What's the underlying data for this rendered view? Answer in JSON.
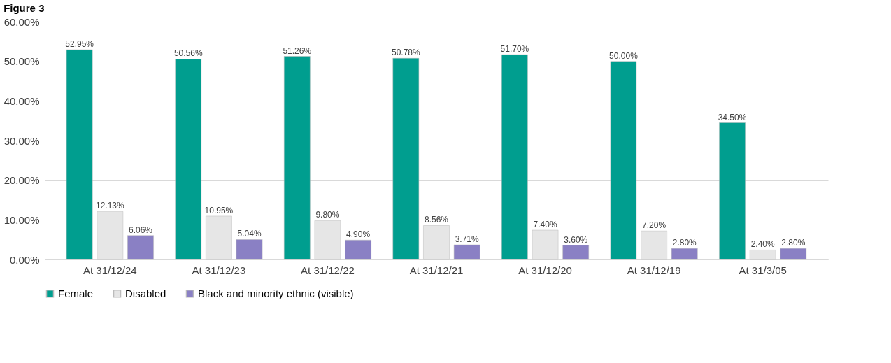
{
  "chart_data": {
    "type": "bar",
    "title": "Figure 3",
    "categories": [
      "At 31/12/24",
      "At 31/12/23",
      "At 31/12/22",
      "At 31/12/21",
      "At 31/12/20",
      "At 31/12/19",
      "At 31/3/05"
    ],
    "series": [
      {
        "name": "Female",
        "color": "#009e8f",
        "values": [
          52.95,
          50.56,
          51.26,
          50.78,
          51.7,
          50.0,
          34.5
        ],
        "value_labels": [
          "52.95%",
          "50.56%",
          "51.26%",
          "50.78%",
          "51.70%",
          "50.00%",
          "34.50%"
        ]
      },
      {
        "name": "Disabled",
        "color": "#e6e6e6",
        "values": [
          12.13,
          10.95,
          9.8,
          8.56,
          7.4,
          7.2,
          2.4
        ],
        "value_labels": [
          "12.13%",
          "10.95%",
          "9.80%",
          "8.56%",
          "7.40%",
          "7.20%",
          "2.40%"
        ]
      },
      {
        "name": "Black and minority ethnic (visible)",
        "color": "#8a80c4",
        "values": [
          6.06,
          5.04,
          4.9,
          3.71,
          3.6,
          2.8,
          2.8
        ],
        "value_labels": [
          "6.06%",
          "5.04%",
          "4.90%",
          "3.71%",
          "3.60%",
          "2.80%",
          "2.80%"
        ]
      }
    ],
    "ylim": [
      0,
      60
    ],
    "yticks": [
      {
        "value": 0,
        "label": "0.00%"
      },
      {
        "value": 10,
        "label": "10.00%"
      },
      {
        "value": 20,
        "label": "20.00%"
      },
      {
        "value": 30,
        "label": "30.00%"
      },
      {
        "value": 40,
        "label": "40.00%"
      },
      {
        "value": 50,
        "label": "50.00%"
      },
      {
        "value": 60,
        "label": "60.00%"
      }
    ],
    "grid": "y",
    "legend": "bottom"
  }
}
